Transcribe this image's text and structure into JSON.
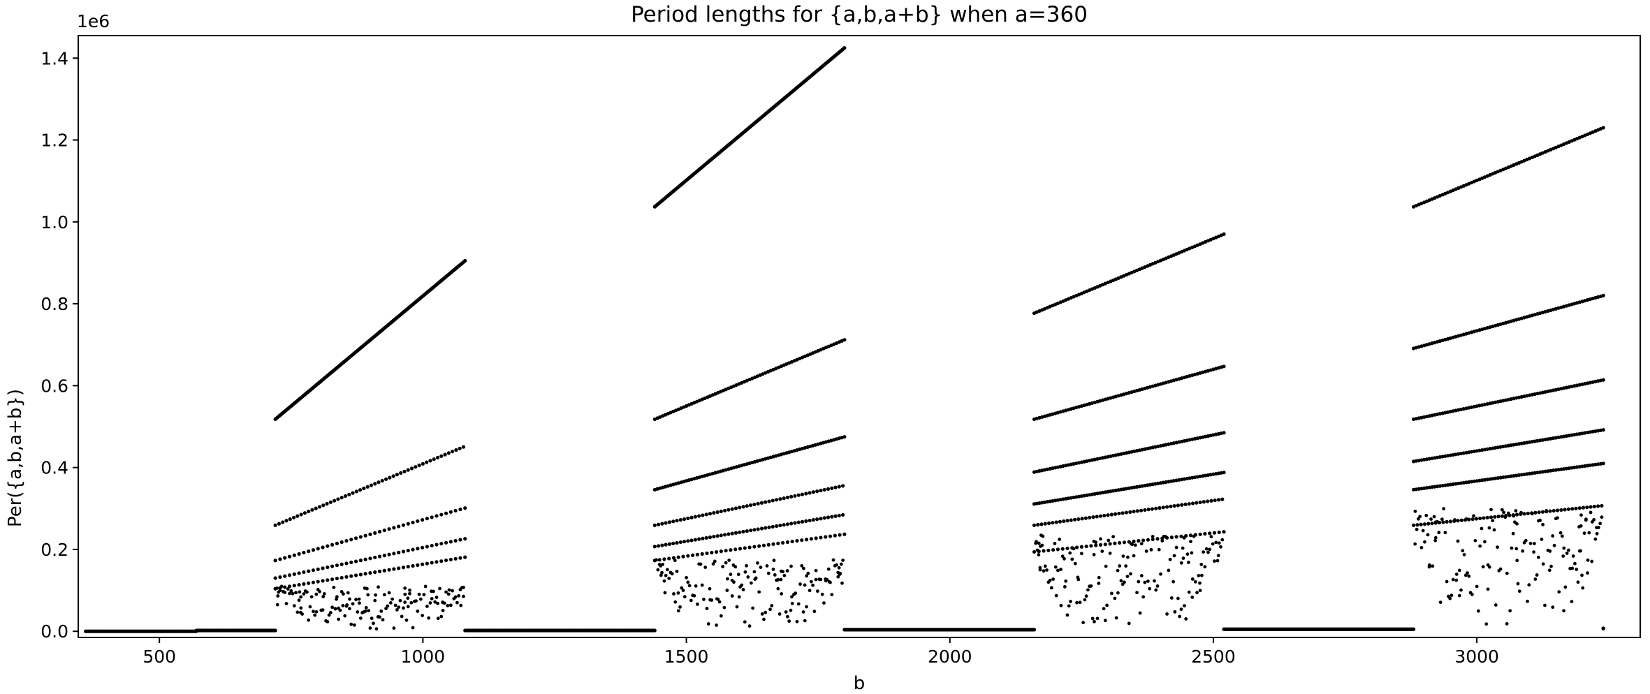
{
  "chart_data": {
    "type": "scatter",
    "title": "Period lengths for {a,b,a+b} when a=360",
    "xlabel": "b",
    "ylabel": "Per({a,b,a+b})",
    "y_offset_label": "1e6",
    "y_multiplier": 1000000,
    "xlim": [
      346,
      3310
    ],
    "ylim": [
      -0.015,
      1.455
    ],
    "xticks": [
      500,
      1000,
      1500,
      2000,
      2500,
      3000
    ],
    "xtick_labels": [
      "500",
      "1000",
      "1500",
      "2000",
      "2500",
      "3000"
    ],
    "yticks": [
      0.0,
      0.2,
      0.4,
      0.6,
      0.8,
      1.0,
      1.2,
      1.4
    ],
    "ytick_labels": [
      "0.0",
      "0.2",
      "0.4",
      "0.6",
      "0.8",
      "1.0",
      "1.2",
      "1.4"
    ],
    "grid": false,
    "legend": "none",
    "marker_color": "#000000",
    "flat_segments": [
      {
        "x": [
          360,
          570
        ],
        "y": 0.0
      },
      {
        "x": [
          570,
          720
        ],
        "y": 0.002
      },
      {
        "x": [
          1080,
          1440
        ],
        "y": 0.002
      },
      {
        "x": [
          1800,
          2160
        ],
        "y": 0.004
      },
      {
        "x": [
          2520,
          2880
        ],
        "y": 0.005
      }
    ],
    "linear_bands": [
      {
        "x_start": 720,
        "x_end": 1080,
        "y_start": 0.518,
        "y_end": 0.905
      },
      {
        "x_start": 720,
        "x_end": 1080,
        "y_start": 0.259,
        "y_end": 0.452
      },
      {
        "x_start": 720,
        "x_end": 1080,
        "y_start": 0.173,
        "y_end": 0.301
      },
      {
        "x_start": 720,
        "x_end": 1080,
        "y_start": 0.13,
        "y_end": 0.226
      },
      {
        "x_start": 720,
        "x_end": 1080,
        "y_start": 0.104,
        "y_end": 0.181
      },
      {
        "x_start": 1440,
        "x_end": 1800,
        "y_start": 1.037,
        "y_end": 1.425
      },
      {
        "x_start": 1440,
        "x_end": 1800,
        "y_start": 0.518,
        "y_end": 0.712
      },
      {
        "x_start": 1440,
        "x_end": 1800,
        "y_start": 0.346,
        "y_end": 0.475
      },
      {
        "x_start": 1440,
        "x_end": 1800,
        "y_start": 0.259,
        "y_end": 0.356
      },
      {
        "x_start": 1440,
        "x_end": 1800,
        "y_start": 0.207,
        "y_end": 0.285
      },
      {
        "x_start": 1440,
        "x_end": 1800,
        "y_start": 0.173,
        "y_end": 0.237
      },
      {
        "x_start": 2160,
        "x_end": 2520,
        "y_start": 0.777,
        "y_end": 0.97
      },
      {
        "x_start": 2160,
        "x_end": 2520,
        "y_start": 0.518,
        "y_end": 0.647
      },
      {
        "x_start": 2160,
        "x_end": 2520,
        "y_start": 0.389,
        "y_end": 0.485
      },
      {
        "x_start": 2160,
        "x_end": 2520,
        "y_start": 0.311,
        "y_end": 0.388
      },
      {
        "x_start": 2160,
        "x_end": 2520,
        "y_start": 0.259,
        "y_end": 0.323
      },
      {
        "x_start": 2160,
        "x_end": 2520,
        "y_start": 0.194,
        "y_end": 0.243
      },
      {
        "x_start": 2880,
        "x_end": 3240,
        "y_start": 1.037,
        "y_end": 1.23
      },
      {
        "x_start": 2880,
        "x_end": 3240,
        "y_start": 0.691,
        "y_end": 0.82
      },
      {
        "x_start": 2880,
        "x_end": 3240,
        "y_start": 0.518,
        "y_end": 0.614
      },
      {
        "x_start": 2880,
        "x_end": 3240,
        "y_start": 0.415,
        "y_end": 0.492
      },
      {
        "x_start": 2880,
        "x_end": 3240,
        "y_start": 0.346,
        "y_end": 0.41
      },
      {
        "x_start": 2880,
        "x_end": 3240,
        "y_start": 0.259,
        "y_end": 0.307
      }
    ],
    "scatter_regions": [
      {
        "x_start": 720,
        "x_end": 1080,
        "y_max": 0.11
      },
      {
        "x_start": 1440,
        "x_end": 1800,
        "y_max": 0.175
      },
      {
        "x_start": 2160,
        "x_end": 2520,
        "y_max": 0.24
      },
      {
        "x_start": 2880,
        "x_end": 3240,
        "y_max": 0.3
      }
    ],
    "extra_points": [
      [
        3240,
        0.007
      ]
    ]
  }
}
